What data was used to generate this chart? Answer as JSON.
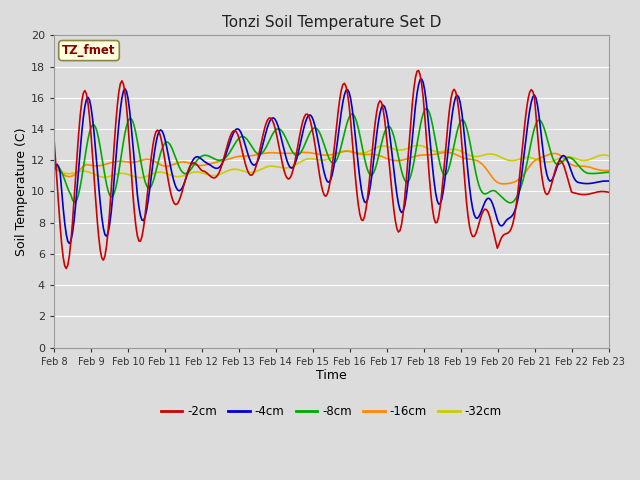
{
  "title": "Tonzi Soil Temperature Set D",
  "xlabel": "Time",
  "ylabel": "Soil Temperature (C)",
  "ylim": [
    0,
    20
  ],
  "yticks": [
    0,
    2,
    4,
    6,
    8,
    10,
    12,
    14,
    16,
    18,
    20
  ],
  "xtick_labels": [
    "Feb 8",
    "Feb 9",
    "Feb 10",
    "Feb 11",
    "Feb 12",
    "Feb 13",
    "Feb 14",
    "Feb 15",
    "Feb 16",
    "Feb 17",
    "Feb 18",
    "Feb 19",
    "Feb 20",
    "Feb 21",
    "Feb 22",
    "Feb 23"
  ],
  "annotation_text": "TZ_fmet",
  "annotation_color": "#8B0000",
  "annotation_bg": "#FFFFE0",
  "colors": {
    "-2cm": "#CC0000",
    "-4cm": "#0000CC",
    "-8cm": "#00AA00",
    "-16cm": "#FF8800",
    "-32cm": "#CCCC00"
  },
  "line_width": 1.2,
  "bg_color": "#DCDCDC",
  "grid_color": "#FFFFFF",
  "legend_labels": [
    "-2cm",
    "-4cm",
    "-8cm",
    "-16cm",
    "-32cm"
  ],
  "figsize": [
    6.4,
    4.8
  ],
  "dpi": 100
}
